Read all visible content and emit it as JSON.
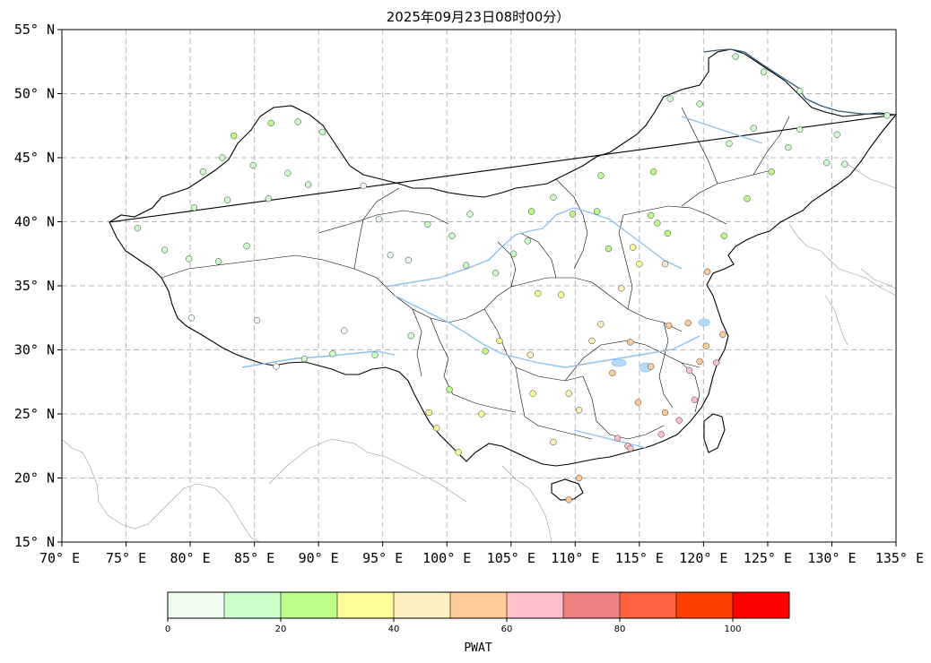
{
  "title": "2025年09月23日08时00分）",
  "map": {
    "lon_range": [
      70,
      135
    ],
    "lat_range": [
      15,
      55
    ],
    "lon_ticks": [
      "70° E",
      "75° E",
      "80° E",
      "85° E",
      "90° E",
      "95° E",
      "100° E",
      "105° E",
      "110° E",
      "115° E",
      "120° E",
      "125° E",
      "130° E",
      "135° E"
    ],
    "lat_ticks": [
      "15° N",
      "20° N",
      "25° N",
      "30° N",
      "35° N",
      "40° N",
      "45° N",
      "50° N",
      "55° N"
    ],
    "lon_tick_values": [
      70,
      75,
      80,
      85,
      90,
      95,
      100,
      105,
      110,
      115,
      120,
      125,
      130,
      135
    ],
    "lat_tick_values": [
      15,
      20,
      25,
      30,
      35,
      40,
      45,
      50,
      55
    ],
    "grid": true,
    "grid_color": "#b8b8b8",
    "border_color": "#000000",
    "coast_color": "#9a9a9a",
    "river_color": "#8ec0f0",
    "ocean_border_color": "#2d5a7a"
  },
  "colorbar": {
    "label": "PWAT",
    "bounds": [
      0,
      10,
      20,
      30,
      40,
      50,
      60,
      70,
      80,
      90,
      100,
      110
    ],
    "tick_labels": [
      "0",
      "20",
      "40",
      "60",
      "80",
      "100"
    ],
    "tick_values": [
      0,
      20,
      40,
      60,
      80,
      100
    ],
    "colors": [
      "#f0fff0",
      "#ccffcc",
      "#bbff88",
      "#ffff99",
      "#fff0c0",
      "#ffcc99",
      "#ffc0cc",
      "#f08080",
      "#ff6040",
      "#ff4000",
      "#ff0000"
    ]
  },
  "stations": [
    {
      "lon": 75.9,
      "lat": 39.5,
      "v": 18
    },
    {
      "lon": 79.9,
      "lat": 37.1,
      "v": 18
    },
    {
      "lon": 78.0,
      "lat": 37.8,
      "v": 14
    },
    {
      "lon": 82.2,
      "lat": 36.9,
      "v": 12
    },
    {
      "lon": 80.3,
      "lat": 41.1,
      "v": 16
    },
    {
      "lon": 82.9,
      "lat": 41.7,
      "v": 18
    },
    {
      "lon": 84.4,
      "lat": 38.1,
      "v": 10
    },
    {
      "lon": 86.1,
      "lat": 41.8,
      "v": 16
    },
    {
      "lon": 87.6,
      "lat": 43.8,
      "v": 12
    },
    {
      "lon": 84.9,
      "lat": 44.4,
      "v": 16
    },
    {
      "lon": 82.5,
      "lat": 45.0,
      "v": 14
    },
    {
      "lon": 81.0,
      "lat": 43.9,
      "v": 18
    },
    {
      "lon": 83.4,
      "lat": 46.7,
      "v": 22
    },
    {
      "lon": 86.3,
      "lat": 47.7,
      "v": 21
    },
    {
      "lon": 88.4,
      "lat": 47.8,
      "v": 16
    },
    {
      "lon": 90.3,
      "lat": 47.0,
      "v": 18
    },
    {
      "lon": 89.2,
      "lat": 42.9,
      "v": 14
    },
    {
      "lon": 93.5,
      "lat": 42.8,
      "v": 8
    },
    {
      "lon": 94.7,
      "lat": 40.2,
      "v": 8
    },
    {
      "lon": 95.6,
      "lat": 37.4,
      "v": 6
    },
    {
      "lon": 97.0,
      "lat": 37.0,
      "v": 8
    },
    {
      "lon": 98.5,
      "lat": 39.8,
      "v": 10
    },
    {
      "lon": 100.4,
      "lat": 38.9,
      "v": 12
    },
    {
      "lon": 101.5,
      "lat": 36.6,
      "v": 12
    },
    {
      "lon": 103.8,
      "lat": 36.0,
      "v": 14
    },
    {
      "lon": 101.8,
      "lat": 40.6,
      "v": 10
    },
    {
      "lon": 106.3,
      "lat": 38.5,
      "v": 16
    },
    {
      "lon": 105.2,
      "lat": 37.5,
      "v": 14
    },
    {
      "lon": 106.6,
      "lat": 40.8,
      "v": 20
    },
    {
      "lon": 109.8,
      "lat": 40.6,
      "v": 22
    },
    {
      "lon": 111.7,
      "lat": 40.8,
      "v": 24
    },
    {
      "lon": 108.3,
      "lat": 41.9,
      "v": 14
    },
    {
      "lon": 112.0,
      "lat": 43.6,
      "v": 21
    },
    {
      "lon": 116.1,
      "lat": 43.9,
      "v": 20
    },
    {
      "lon": 115.9,
      "lat": 40.5,
      "v": 24
    },
    {
      "lon": 116.4,
      "lat": 39.9,
      "v": 26
    },
    {
      "lon": 117.2,
      "lat": 39.1,
      "v": 28
    },
    {
      "lon": 114.5,
      "lat": 38.0,
      "v": 32
    },
    {
      "lon": 112.6,
      "lat": 37.9,
      "v": 28
    },
    {
      "lon": 113.6,
      "lat": 34.8,
      "v": 42
    },
    {
      "lon": 115.0,
      "lat": 36.7,
      "v": 36
    },
    {
      "lon": 117.0,
      "lat": 36.7,
      "v": 48
    },
    {
      "lon": 120.3,
      "lat": 36.1,
      "v": 52
    },
    {
      "lon": 118.8,
      "lat": 32.1,
      "v": 55
    },
    {
      "lon": 121.5,
      "lat": 31.2,
      "v": 56
    },
    {
      "lon": 120.2,
      "lat": 30.3,
      "v": 58
    },
    {
      "lon": 117.3,
      "lat": 31.9,
      "v": 55
    },
    {
      "lon": 114.3,
      "lat": 30.6,
      "v": 52
    },
    {
      "lon": 112.9,
      "lat": 28.2,
      "v": 54
    },
    {
      "lon": 115.9,
      "lat": 28.7,
      "v": 56
    },
    {
      "lon": 119.3,
      "lat": 26.1,
      "v": 62
    },
    {
      "lon": 118.1,
      "lat": 24.5,
      "v": 64
    },
    {
      "lon": 113.3,
      "lat": 23.1,
      "v": 62
    },
    {
      "lon": 114.1,
      "lat": 22.5,
      "v": 60
    },
    {
      "lon": 116.7,
      "lat": 23.4,
      "v": 66
    },
    {
      "lon": 110.3,
      "lat": 20.0,
      "v": 52
    },
    {
      "lon": 109.5,
      "lat": 18.3,
      "v": 50
    },
    {
      "lon": 108.3,
      "lat": 22.8,
      "v": 46
    },
    {
      "lon": 110.3,
      "lat": 25.3,
      "v": 44
    },
    {
      "lon": 106.7,
      "lat": 26.6,
      "v": 38
    },
    {
      "lon": 102.7,
      "lat": 25.0,
      "v": 32
    },
    {
      "lon": 100.2,
      "lat": 26.9,
      "v": 28
    },
    {
      "lon": 104.1,
      "lat": 30.7,
      "v": 36
    },
    {
      "lon": 106.5,
      "lat": 29.6,
      "v": 44
    },
    {
      "lon": 108.9,
      "lat": 34.3,
      "v": 38
    },
    {
      "lon": 107.1,
      "lat": 34.4,
      "v": 30
    },
    {
      "lon": 103.0,
      "lat": 29.9,
      "v": 28
    },
    {
      "lon": 98.6,
      "lat": 25.1,
      "v": 34
    },
    {
      "lon": 100.9,
      "lat": 22.0,
      "v": 38
    },
    {
      "lon": 99.2,
      "lat": 23.9,
      "v": 36
    },
    {
      "lon": 97.2,
      "lat": 31.1,
      "v": 14
    },
    {
      "lon": 91.1,
      "lat": 29.7,
      "v": 12
    },
    {
      "lon": 88.9,
      "lat": 29.3,
      "v": 10
    },
    {
      "lon": 94.4,
      "lat": 29.6,
      "v": 16
    },
    {
      "lon": 92.0,
      "lat": 31.5,
      "v": 8
    },
    {
      "lon": 80.1,
      "lat": 32.5,
      "v": 6
    },
    {
      "lon": 85.2,
      "lat": 32.3,
      "v": 6
    },
    {
      "lon": 86.7,
      "lat": 28.7,
      "v": 8
    },
    {
      "lon": 126.6,
      "lat": 45.8,
      "v": 18
    },
    {
      "lon": 125.3,
      "lat": 43.9,
      "v": 20
    },
    {
      "lon": 123.4,
      "lat": 41.8,
      "v": 22
    },
    {
      "lon": 121.6,
      "lat": 38.9,
      "v": 24
    },
    {
      "lon": 122.0,
      "lat": 46.1,
      "v": 16
    },
    {
      "lon": 123.9,
      "lat": 47.3,
      "v": 18
    },
    {
      "lon": 127.5,
      "lat": 47.2,
      "v": 18
    },
    {
      "lon": 130.4,
      "lat": 46.8,
      "v": 16
    },
    {
      "lon": 129.6,
      "lat": 44.6,
      "v": 14
    },
    {
      "lon": 124.7,
      "lat": 51.7,
      "v": 14
    },
    {
      "lon": 122.5,
      "lat": 52.9,
      "v": 16
    },
    {
      "lon": 127.5,
      "lat": 50.2,
      "v": 18
    },
    {
      "lon": 119.7,
      "lat": 49.2,
      "v": 16
    },
    {
      "lon": 117.4,
      "lat": 49.6,
      "v": 14
    },
    {
      "lon": 134.3,
      "lat": 48.3,
      "v": 14
    },
    {
      "lon": 131.0,
      "lat": 44.5,
      "v": 12
    },
    {
      "lon": 114.3,
      "lat": 22.3,
      "v": 62
    },
    {
      "lon": 121.0,
      "lat": 29.0,
      "v": 60
    },
    {
      "lon": 117.0,
      "lat": 25.1,
      "v": 58
    },
    {
      "lon": 111.3,
      "lat": 30.7,
      "v": 48
    },
    {
      "lon": 109.5,
      "lat": 26.6,
      "v": 42
    },
    {
      "lon": 112.0,
      "lat": 32.0,
      "v": 44
    },
    {
      "lon": 114.9,
      "lat": 25.9,
      "v": 58
    },
    {
      "lon": 118.9,
      "lat": 28.4,
      "v": 60
    },
    {
      "lon": 119.7,
      "lat": 29.1,
      "v": 59
    }
  ]
}
